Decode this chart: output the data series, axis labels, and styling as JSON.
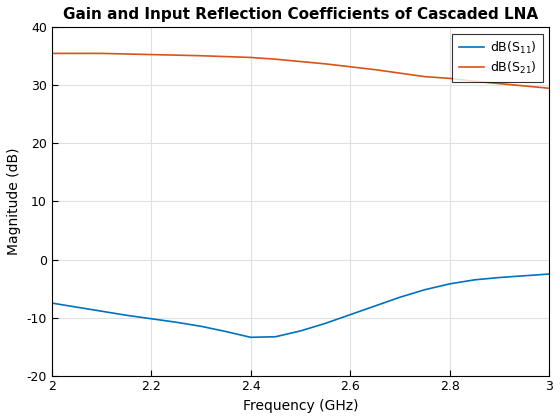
{
  "title": "Gain and Input Reflection Coefficients of Cascaded LNA",
  "xlabel": "Frequency (GHz)",
  "ylabel": "Magnitude (dB)",
  "xlim": [
    2,
    3
  ],
  "ylim": [
    -20,
    40
  ],
  "xticks": [
    2.0,
    2.2,
    2.4,
    2.6,
    2.8,
    3.0
  ],
  "yticks": [
    -20,
    -10,
    0,
    10,
    20,
    30,
    40
  ],
  "s11_color": "#0072BD",
  "s21_color": "#D95319",
  "freq": [
    2.0,
    2.05,
    2.1,
    2.15,
    2.2,
    2.25,
    2.3,
    2.35,
    2.4,
    2.45,
    2.5,
    2.55,
    2.6,
    2.65,
    2.7,
    2.75,
    2.8,
    2.85,
    2.9,
    2.95,
    3.0
  ],
  "s11": [
    -7.5,
    -8.2,
    -8.9,
    -9.6,
    -10.2,
    -10.8,
    -11.5,
    -12.4,
    -13.4,
    -13.3,
    -12.3,
    -11.0,
    -9.5,
    -8.0,
    -6.5,
    -5.2,
    -4.2,
    -3.5,
    -3.1,
    -2.8,
    -2.5
  ],
  "s21": [
    35.5,
    35.5,
    35.5,
    35.4,
    35.3,
    35.2,
    35.1,
    34.95,
    34.8,
    34.5,
    34.1,
    33.7,
    33.2,
    32.7,
    32.1,
    31.5,
    31.2,
    30.7,
    30.3,
    29.9,
    29.5
  ],
  "linewidth": 1.2,
  "title_fontsize": 11,
  "label_fontsize": 10,
  "tick_fontsize": 9,
  "legend_fontsize": 9,
  "background_color": "#ffffff",
  "grid_color": "#e0e0e0",
  "axes_edge_color": "#000000"
}
